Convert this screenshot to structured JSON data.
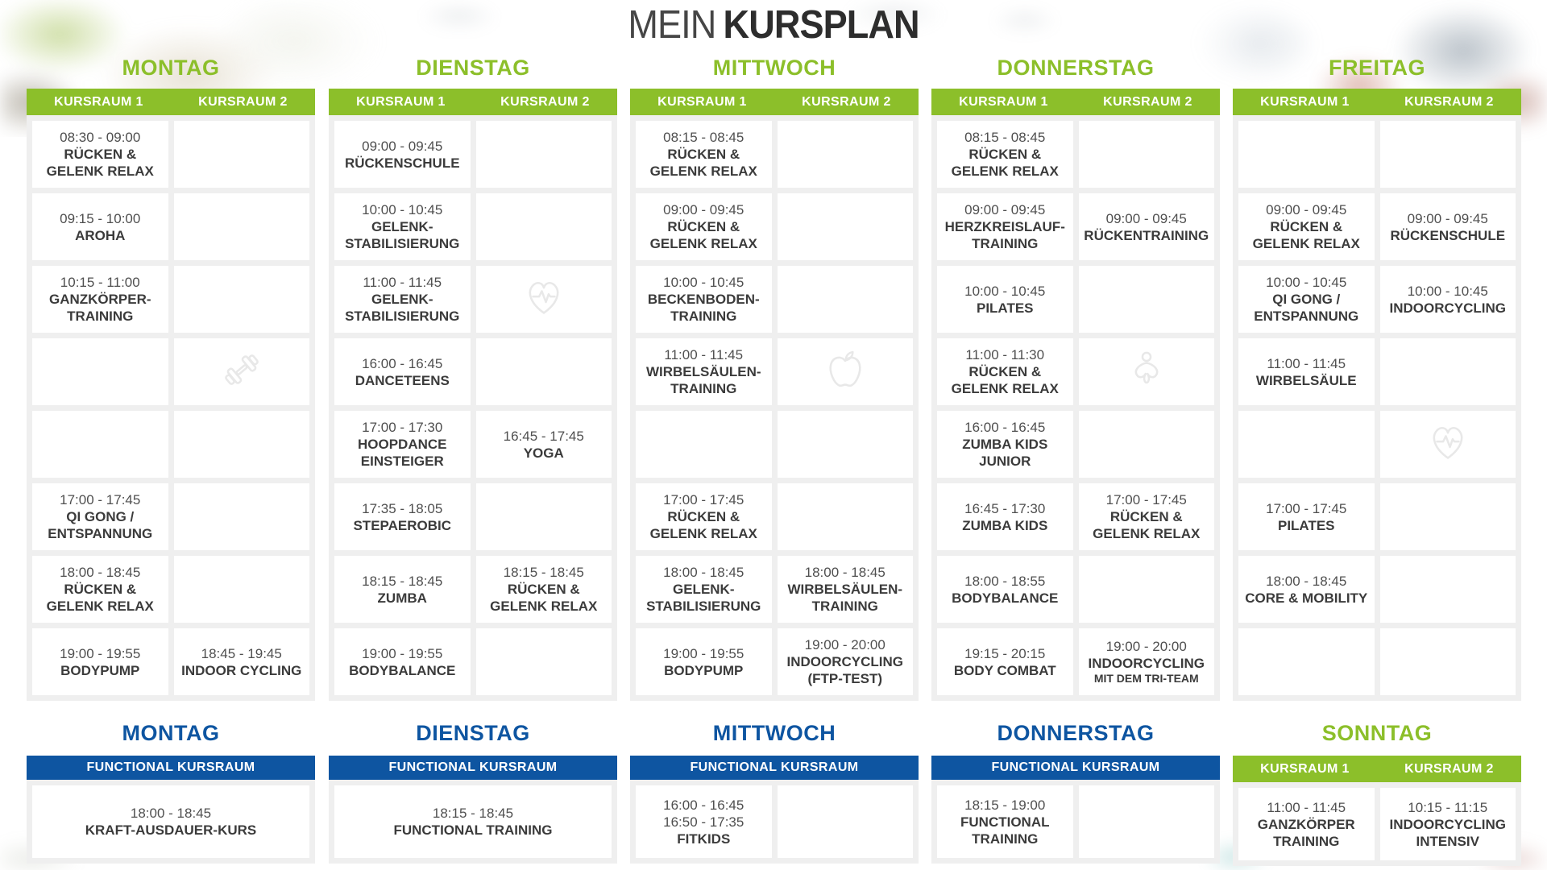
{
  "title": {
    "light": "MEIN",
    "bold": "KURSPLAN"
  },
  "colors": {
    "green": "#8cbf2a",
    "blue": "#0e55a1",
    "panel_gray": "#efefef",
    "cell_white": "#ffffff",
    "text_dark": "#3b3b3b"
  },
  "top_days": [
    {
      "name": "MONTAG",
      "rooms": [
        "KURSRAUM 1",
        "KURSRAUM 2"
      ],
      "rows": [
        [
          {
            "time": "08:30 - 09:00",
            "name": "RÜCKEN & GELENK RELAX"
          },
          null
        ],
        [
          {
            "time": "09:15 - 10:00",
            "name": "AROHA"
          },
          null
        ],
        [
          {
            "time": "10:15 - 11:00",
            "name": "GANZKÖRPER-TRAINING"
          },
          null
        ],
        [
          null,
          {
            "icon": "dumbbell-icon"
          }
        ],
        [
          null,
          null
        ],
        [
          {
            "time": "17:00 - 17:45",
            "name": "QI GONG / ENTSPANNUNG"
          },
          null
        ],
        [
          {
            "time": "18:00 - 18:45",
            "name": "RÜCKEN & GELENK RELAX"
          },
          null
        ],
        [
          {
            "time": "19:00 - 19:55",
            "name": "BODYPUMP"
          },
          {
            "time": "18:45 - 19:45",
            "name": "INDOOR CYCLING"
          }
        ]
      ]
    },
    {
      "name": "DIENSTAG",
      "rooms": [
        "KURSRAUM 1",
        "KURSRAUM 2"
      ],
      "rows": [
        [
          {
            "time": "09:00 - 09:45",
            "name": "RÜCKENSCHULE"
          },
          null
        ],
        [
          {
            "time": "10:00 - 10:45",
            "name": "GELENK-STABILISIERUNG"
          },
          null
        ],
        [
          {
            "time": "11:00 - 11:45",
            "name": "GELENK-STABILISIERUNG"
          },
          {
            "icon": "heart-pulse-icon"
          }
        ],
        [
          {
            "time": "16:00 - 16:45",
            "name": "DANCETEENS"
          },
          null
        ],
        [
          {
            "time": "17:00 - 17:30",
            "name": "HOOPDANCE EINSTEIGER"
          },
          {
            "time": "16:45 - 17:45",
            "name": "YOGA"
          }
        ],
        [
          {
            "time": "17:35 - 18:05",
            "name": "STEPAEROBIC"
          },
          null
        ],
        [
          {
            "time": "18:15 - 18:45",
            "name": "ZUMBA"
          },
          {
            "time": "18:15 - 18:45",
            "name": "RÜCKEN & GELENK RELAX"
          }
        ],
        [
          {
            "time": "19:00 - 19:55",
            "name": "BODYBALANCE"
          },
          null
        ]
      ]
    },
    {
      "name": "MITTWOCH",
      "rooms": [
        "KURSRAUM 1",
        "KURSRAUM 2"
      ],
      "rows": [
        [
          {
            "time": "08:15 - 08:45",
            "name": "RÜCKEN & GELENK RELAX"
          },
          null
        ],
        [
          {
            "time": "09:00 - 09:45",
            "name": "RÜCKEN & GELENK RELAX"
          },
          null
        ],
        [
          {
            "time": "10:00 - 10:45",
            "name": "BECKENBODEN-TRAINING"
          },
          null
        ],
        [
          {
            "time": "11:00 - 11:45",
            "name": "WIRBELSÄULEN-TRAINING"
          },
          {
            "icon": "apple-icon"
          }
        ],
        [
          null,
          null
        ],
        [
          {
            "time": "17:00 - 17:45",
            "name": "RÜCKEN & GELENK RELAX"
          },
          null
        ],
        [
          {
            "time": "18:00 - 18:45",
            "name": "GELENK-STABILISIERUNG"
          },
          {
            "time": "18:00 - 18:45",
            "name": "WIRBELSÄULEN-TRAINING"
          }
        ],
        [
          {
            "time": "19:00 - 19:55",
            "name": "BODYPUMP"
          },
          {
            "time": "19:00 - 20:00",
            "name": "INDOORCYCLING (FTP-TEST)"
          }
        ]
      ]
    },
    {
      "name": "DONNERSTAG",
      "rooms": [
        "KURSRAUM 1",
        "KURSRAUM 2"
      ],
      "rows": [
        [
          {
            "time": "08:15 - 08:45",
            "name": "RÜCKEN & GELENK RELAX"
          },
          null
        ],
        [
          {
            "time": "09:00 - 09:45",
            "name": "HERZKREISLAUF-TRAINING"
          },
          {
            "time": "09:00 - 09:45",
            "name": "RÜCKENTRAINING"
          }
        ],
        [
          {
            "time": "10:00 - 10:45",
            "name": "PILATES"
          },
          null
        ],
        [
          {
            "time": "11:00 - 11:30",
            "name": "RÜCKEN & GELENK RELAX"
          },
          {
            "icon": "meditation-icon"
          }
        ],
        [
          {
            "time": "16:00 - 16:45",
            "name": "ZUMBA KIDS JUNIOR"
          },
          null
        ],
        [
          {
            "time": "16:45 - 17:30",
            "name": "ZUMBA KIDS"
          },
          {
            "time": "17:00 - 17:45",
            "name": "RÜCKEN & GELENK RELAX"
          }
        ],
        [
          {
            "time": "18:00 - 18:55",
            "name": "BODYBALANCE"
          },
          null
        ],
        [
          {
            "time": "19:15 - 20:15",
            "name": "BODY COMBAT"
          },
          {
            "time": "19:00 - 20:00",
            "name": "INDOORCYCLING",
            "sub": "MIT DEM TRI-TEAM"
          }
        ]
      ]
    },
    {
      "name": "FREITAG",
      "rooms": [
        "KURSRAUM 1",
        "KURSRAUM 2"
      ],
      "rows": [
        [
          null,
          null
        ],
        [
          {
            "time": "09:00 - 09:45",
            "name": "RÜCKEN & GELENK RELAX"
          },
          {
            "time": "09:00 - 09:45",
            "name": "RÜCKENSCHULE"
          }
        ],
        [
          {
            "time": "10:00 - 10:45",
            "name": "QI GONG / ENTSPANNUNG"
          },
          {
            "time": "10:00 - 10:45",
            "name": "INDOORCYCLING"
          }
        ],
        [
          {
            "time": "11:00 - 11:45",
            "name": "WIRBELSÄULE"
          },
          null
        ],
        [
          null,
          {
            "icon": "heart-pulse-icon"
          }
        ],
        [
          {
            "time": "17:00 - 17:45",
            "name": "PILATES"
          },
          null
        ],
        [
          {
            "time": "18:00 - 18:45",
            "name": "CORE & MOBILITY"
          },
          null
        ],
        [
          null,
          null
        ]
      ]
    }
  ],
  "bottom_days": [
    {
      "name": "MONTAG",
      "accent": "blue",
      "rooms": [
        "FUNCTIONAL KURSRAUM"
      ],
      "layout": "single",
      "cells": [
        {
          "time": "18:00 - 18:45",
          "name": "KRAFT-AUSDAUER-KURS"
        }
      ]
    },
    {
      "name": "DIENSTAG",
      "accent": "blue",
      "rooms": [
        "FUNCTIONAL KURSRAUM"
      ],
      "layout": "single",
      "cells": [
        {
          "time": "18:15 - 18:45",
          "name": "FUNCTIONAL TRAINING"
        }
      ]
    },
    {
      "name": "MITTWOCH",
      "accent": "blue",
      "rooms": [
        "FUNCTIONAL KURSRAUM"
      ],
      "layout": "double",
      "cells": [
        {
          "time": "16:00 - 16:45",
          "time2": "16:50 - 17:35",
          "name": "FITKIDS"
        },
        null
      ]
    },
    {
      "name": "DONNERSTAG",
      "accent": "blue",
      "rooms": [
        "FUNCTIONAL KURSRAUM"
      ],
      "layout": "double",
      "cells": [
        {
          "time": "18:15 - 19:00",
          "name": "FUNCTIONAL TRAINING"
        },
        null
      ]
    },
    {
      "name": "SONNTAG",
      "accent": "green",
      "rooms": [
        "KURSRAUM 1",
        "KURSRAUM 2"
      ],
      "layout": "double",
      "cells": [
        {
          "time": "11:00 - 11:45",
          "name": "GANZKÖRPER TRAINING"
        },
        {
          "time": "10:15 - 11:15",
          "name": "INDOORCYCLING INTENSIV"
        }
      ]
    }
  ]
}
